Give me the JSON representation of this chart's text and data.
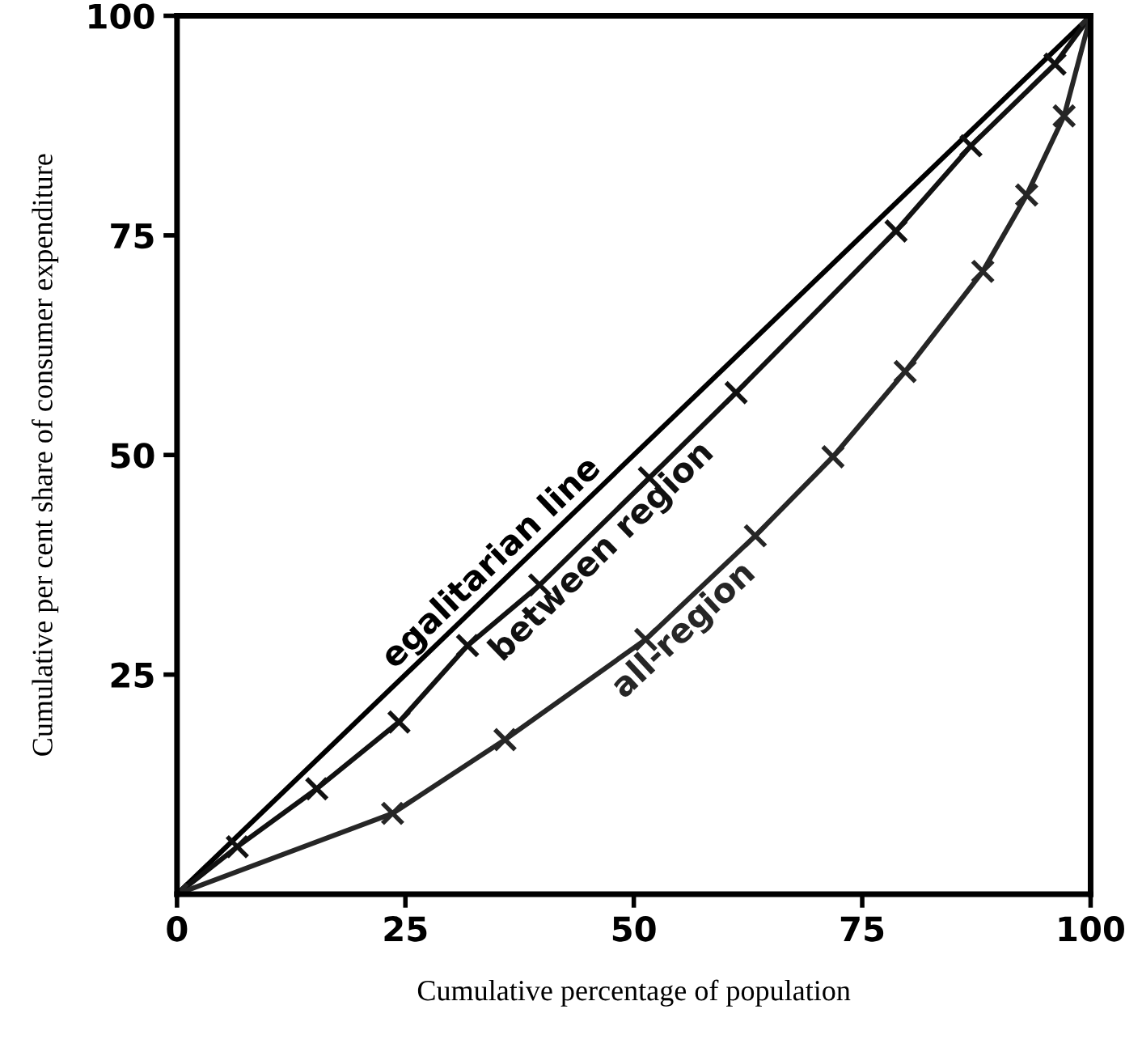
{
  "chart_data": {
    "type": "line",
    "xlabel": "Cumulative percentage of population",
    "ylabel": "Cumulative per cent share of consumer expenditure",
    "xlim": [
      0,
      100
    ],
    "ylim": [
      0,
      100
    ],
    "xticks": [
      0,
      25,
      50,
      75,
      100
    ],
    "yticks": [
      25,
      50,
      75,
      100
    ],
    "grid": false,
    "legend": false,
    "series": [
      {
        "name": "egalitarian line",
        "color": "#000000",
        "marker": "none",
        "x": [
          0,
          100
        ],
        "values": [
          0,
          100
        ]
      },
      {
        "name": "between region",
        "color": "#111111",
        "marker": "cross",
        "x": [
          0,
          6.6,
          15.3,
          24.3,
          31.8,
          39.7,
          51.7,
          61.2,
          78.7,
          86.9,
          96.1,
          100
        ],
        "values": [
          0,
          5.4,
          12.0,
          19.6,
          28.3,
          35.2,
          47.4,
          57.1,
          75.5,
          85.2,
          94.5,
          100
        ]
      },
      {
        "name": "all-region",
        "color": "#262626",
        "marker": "cross",
        "x": [
          0,
          23.6,
          35.9,
          51.3,
          63.3,
          71.8,
          79.7,
          88.2,
          93.0,
          97.1,
          100
        ],
        "values": [
          0,
          9.2,
          17.6,
          29.0,
          40.8,
          49.8,
          59.5,
          70.9,
          79.6,
          88.6,
          100
        ]
      }
    ]
  }
}
